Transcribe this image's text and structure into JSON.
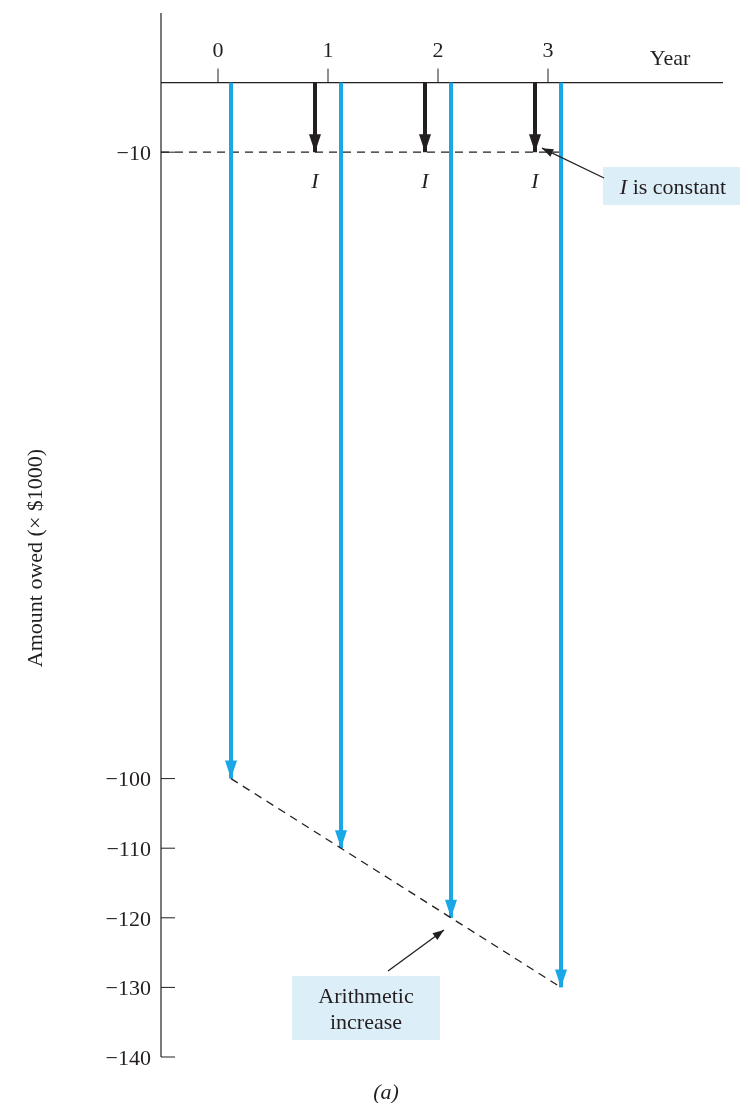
{
  "chart_data": {
    "type": "bar",
    "xlabel": "Year",
    "ylabel": "Amount owed (× $1000)",
    "categories": [
      "0",
      "1",
      "2",
      "3"
    ],
    "series": [
      {
        "color": "#231f20",
        "values": [
          null,
          -10,
          -10,
          -10
        ]
      },
      {
        "color": "#1aa7e8",
        "values": [
          -100,
          -110,
          -120,
          -130
        ]
      },
      {
        "type": "line",
        "color": "#231f20",
        "line_style": "dashed",
        "values": [
          -100,
          -110,
          -120,
          -130
        ]
      }
    ],
    "ylim": [
      -140,
      10
    ],
    "yticks": [
      {
        "value": -10,
        "label": "−10"
      },
      {
        "value": -100,
        "label": "−100"
      },
      {
        "value": -110,
        "label": "−110"
      },
      {
        "value": -120,
        "label": "−120"
      },
      {
        "value": -130,
        "label": "−130"
      },
      {
        "value": -140,
        "label": "−140"
      }
    ],
    "ref_lines": [
      {
        "axis": "y",
        "value": -10,
        "color": "#231f20",
        "line_style": "dashed"
      }
    ],
    "annotations": [
      "I",
      "I",
      "I",
      {
        "text": "I is constant",
        "x": "3",
        "y": -10
      },
      "Arithmetic increase",
      "(a)"
    ]
  }
}
